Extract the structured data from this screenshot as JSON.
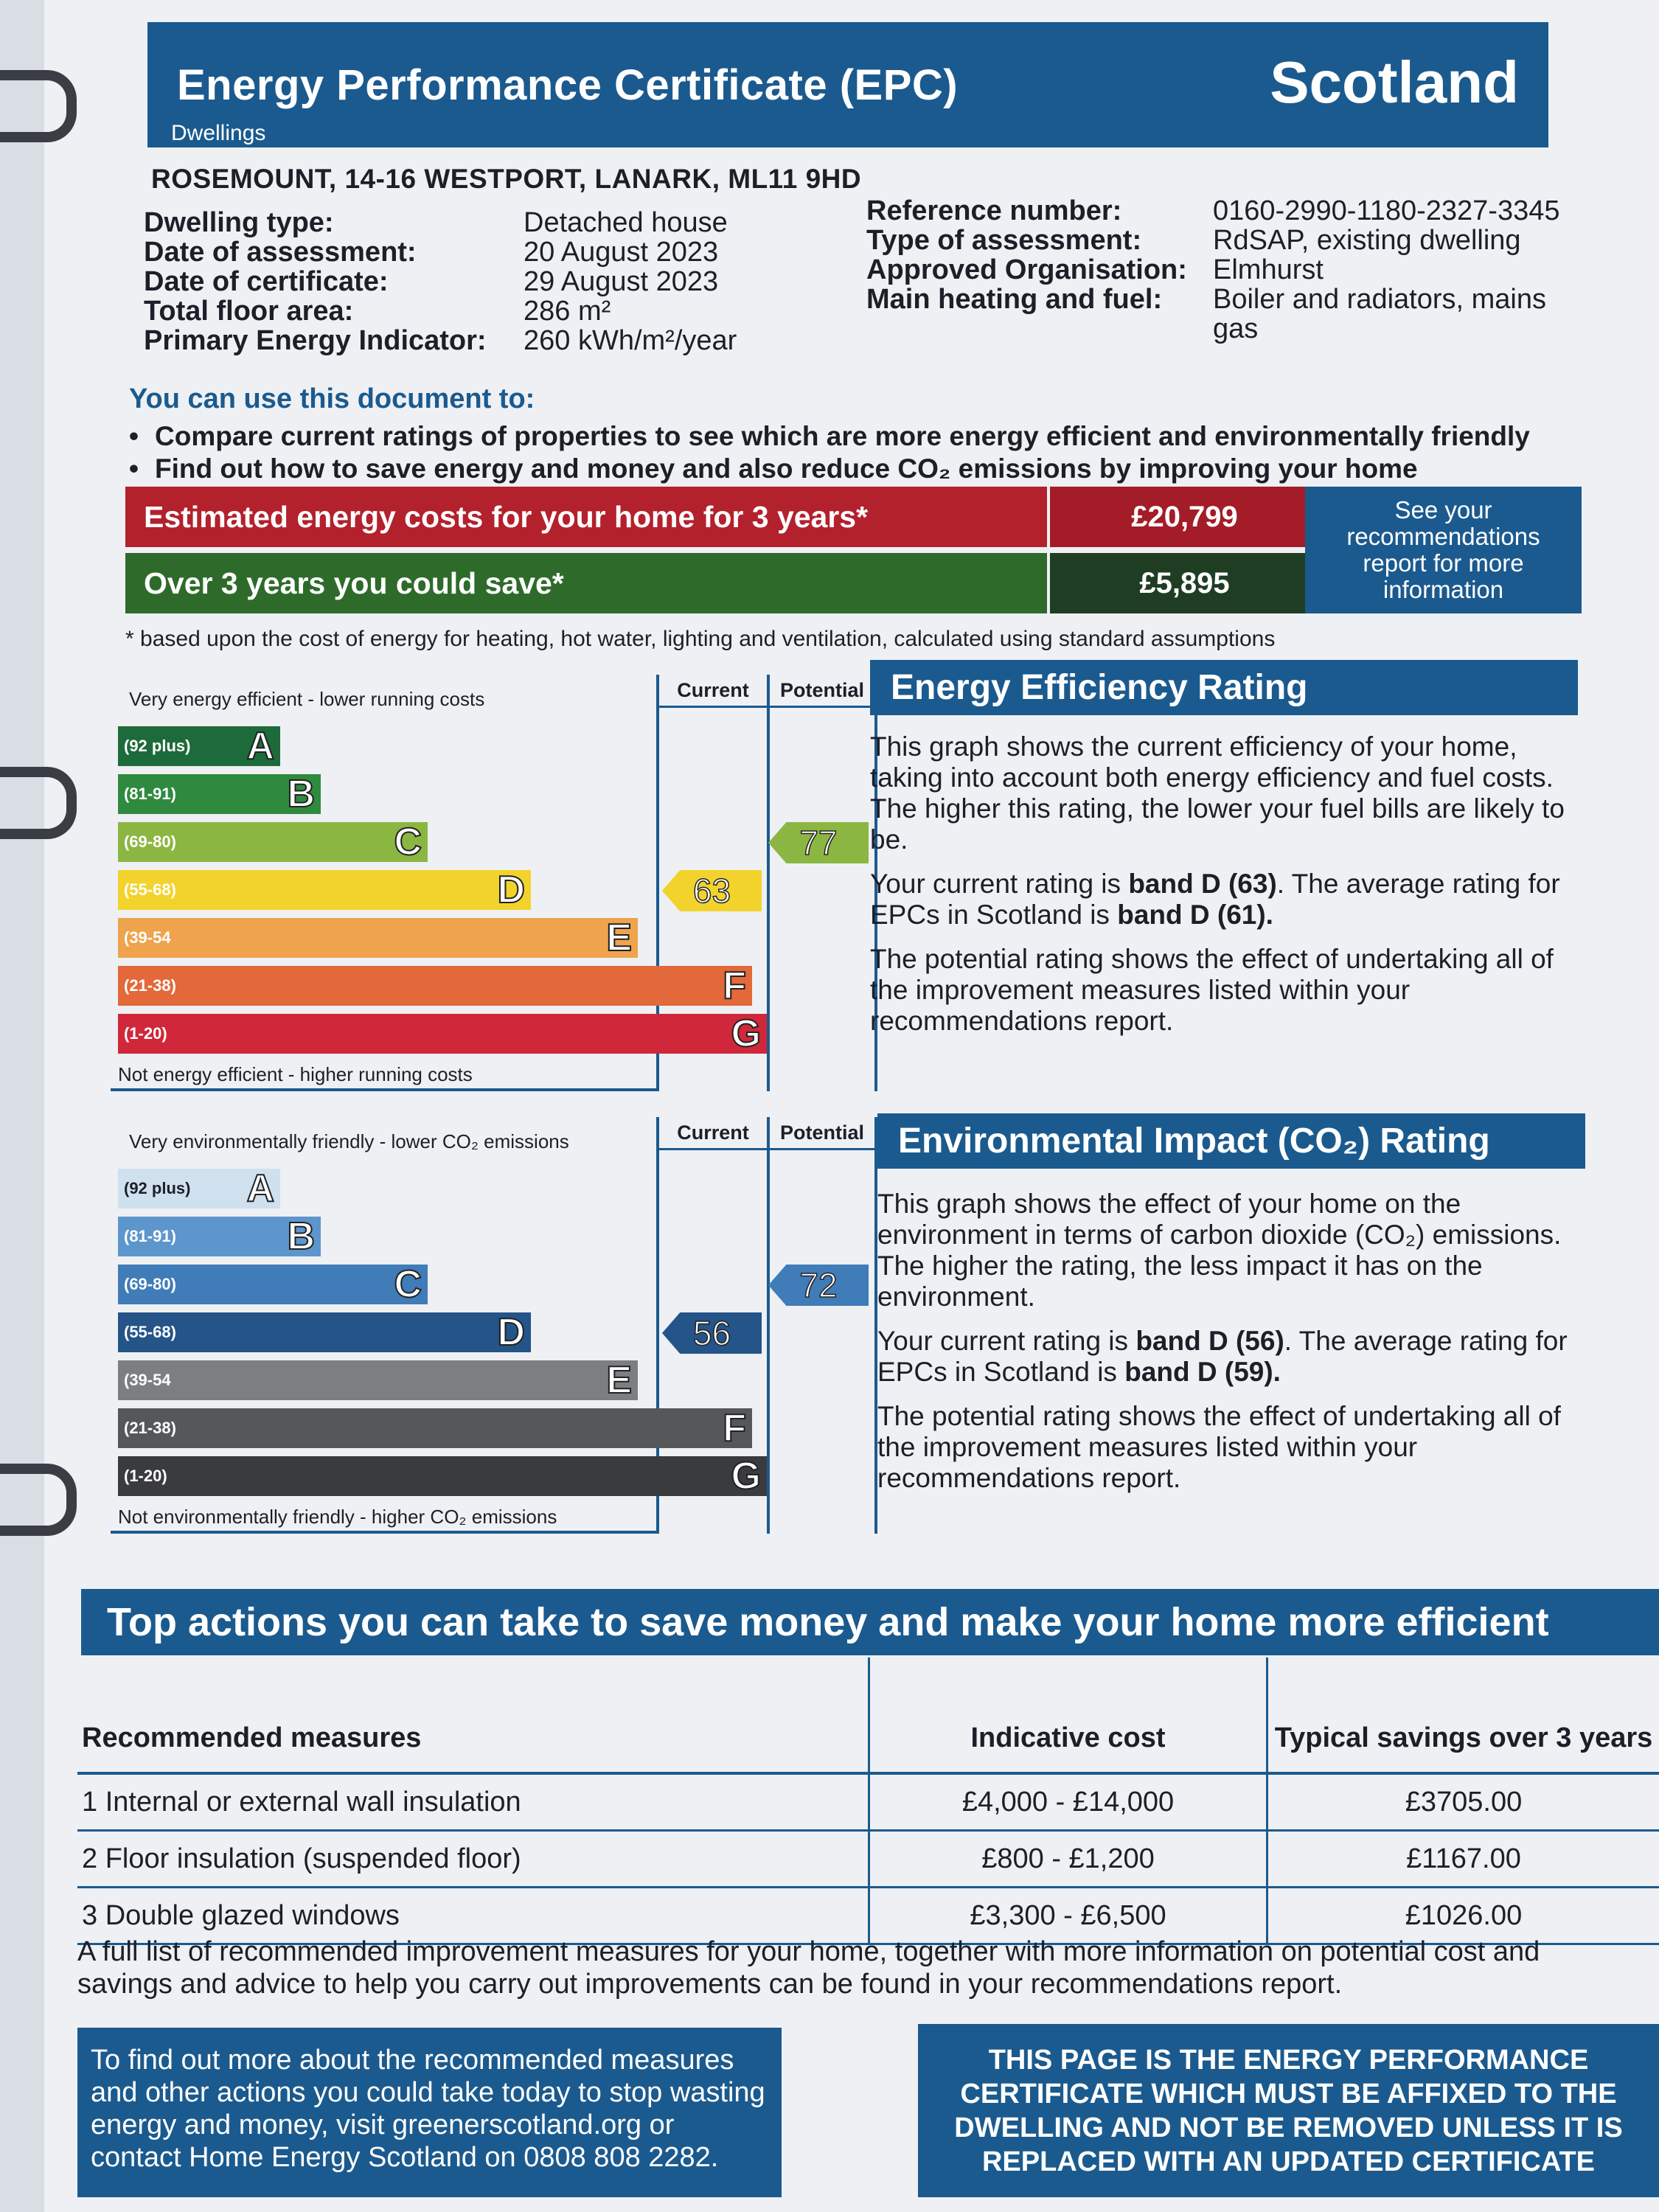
{
  "header": {
    "title": "Energy Performance Certificate (EPC)",
    "country": "Scotland",
    "subtitle": "Dwellings"
  },
  "address": "ROSEMOUNT, 14-16 WESTPORT, LANARK, ML11 9HD",
  "details_left": [
    {
      "label": "Dwelling type:",
      "value": "Detached house"
    },
    {
      "label": "Date of assessment:",
      "value": "20 August 2023"
    },
    {
      "label": "Date of certificate:",
      "value": "29 August 2023"
    },
    {
      "label": "Total floor area:",
      "value": "286 m²"
    },
    {
      "label": "Primary Energy Indicator:",
      "value": "260 kWh/m²/year"
    }
  ],
  "details_right": [
    {
      "label": "Reference number:",
      "value": "0160-2990-1180-2327-3345"
    },
    {
      "label": "Type of assessment:",
      "value": "RdSAP, existing dwelling"
    },
    {
      "label": "Approved Organisation:",
      "value": "Elmhurst"
    },
    {
      "label": "Main heating and fuel:",
      "value": "Boiler and radiators, mains gas"
    }
  ],
  "use": {
    "title": "You can use this document to:",
    "bullets": [
      "Compare current ratings of properties to see which are more energy efficient and environmentally friendly",
      "Find out how to save energy and money and also reduce CO₂ emissions by improving your home"
    ]
  },
  "costs": {
    "estimated_label": "Estimated energy costs for your home for 3 years*",
    "estimated_value": "£20,799",
    "save_label": "Over 3 years you could save*",
    "save_value": "£5,895",
    "see_box": "See your recommendations report for more information",
    "footnote": "* based upon the cost of energy for heating, hot water, lighting and ventilation, calculated using standard assumptions"
  },
  "energy_chart": {
    "top_label": "Very energy efficient - lower running costs",
    "bottom_label": "Not energy efficient - higher running costs",
    "col_current": "Current",
    "col_potential": "Potential",
    "bands": [
      {
        "range": "(92 plus)",
        "letter": "A",
        "color": "#1d6b3a"
      },
      {
        "range": "(81-91)",
        "letter": "B",
        "color": "#2f8a3f"
      },
      {
        "range": "(69-80)",
        "letter": "C",
        "color": "#8cb642"
      },
      {
        "range": "(55-68)",
        "letter": "D",
        "color": "#f2d32c"
      },
      {
        "range": "(39-54",
        "letter": "E",
        "color": "#eea34c"
      },
      {
        "range": "(21-38)",
        "letter": "F",
        "color": "#e3683a"
      },
      {
        "range": "(1-20)",
        "letter": "G",
        "color": "#d0283a"
      }
    ],
    "current": "63",
    "potential": "77",
    "current_color": "#f2d32c",
    "potential_color": "#8cb642"
  },
  "energy_text": {
    "title": "Energy Efficiency Rating",
    "p1": "This graph shows the current efficiency of your home, taking into account both energy efficiency and fuel costs. The higher this rating, the lower your fuel bills are likely to be.",
    "p2_a": "Your current rating is ",
    "p2_b": "band D (63)",
    "p2_c": ". The average rating for EPCs in Scotland is ",
    "p2_d": "band D (61).",
    "p3": "The potential rating shows the effect of undertaking all of the improvement measures listed within your recommendations report."
  },
  "env_chart": {
    "top_label": "Very environmentally friendly - lower CO₂ emissions",
    "bottom_label": "Not environmentally friendly - higher CO₂ emissions",
    "col_current": "Current",
    "col_potential": "Potential",
    "bands": [
      {
        "range": "(92 plus)",
        "letter": "A",
        "color": "#cfe0ee"
      },
      {
        "range": "(81-91)",
        "letter": "B",
        "color": "#5d96cc"
      },
      {
        "range": "(69-80)",
        "letter": "C",
        "color": "#3f7cb8"
      },
      {
        "range": "(55-68)",
        "letter": "D",
        "color": "#245488"
      },
      {
        "range": "(39-54",
        "letter": "E",
        "color": "#7c7e82"
      },
      {
        "range": "(21-38)",
        "letter": "F",
        "color": "#55575b"
      },
      {
        "range": "(1-20)",
        "letter": "G",
        "color": "#3a3b3f"
      }
    ],
    "current": "56",
    "potential": "72",
    "current_color": "#245488",
    "potential_color": "#3f7cb8"
  },
  "env_text": {
    "title": "Environmental Impact (CO₂) Rating",
    "p1": "This graph shows the effect of your home on the environment in terms of carbon dioxide (CO₂) emissions. The higher the rating, the less impact it has on the environment.",
    "p2_a": "Your current rating is ",
    "p2_b": "band D (56)",
    "p2_c": ". The average rating for EPCs in Scotland is ",
    "p2_d": "band D (59).",
    "p3": "The potential rating shows the effect of undertaking all of the improvement measures listed within your recommendations report."
  },
  "actions": {
    "title": "Top actions you can take to save money and make your home more efficient",
    "headers": [
      "Recommended measures",
      "Indicative cost",
      "Typical savings over 3 years"
    ],
    "rows": [
      [
        "1 Internal or external wall insulation",
        "£4,000 - £14,000",
        "£3705.00"
      ],
      [
        "2 Floor insulation (suspended floor)",
        "£800 - £1,200",
        "£1167.00"
      ],
      [
        "3 Double glazed windows",
        "£3,300 - £6,500",
        "£1026.00"
      ]
    ],
    "full_list": "A full list of recommended improvement measures for your home, together with more information on potential cost and savings and advice to help you carry out improvements can be found in your recommendations report."
  },
  "footer": {
    "more": "To find out more about the recommended measures and other actions you could take today to stop wasting energy and money, visit greenerscotland.org or contact Home Energy Scotland on 0808 808 2282.",
    "affix": "THIS PAGE IS THE ENERGY PERFORMANCE CERTIFICATE WHICH MUST BE AFFIXED TO THE DWELLING AND NOT BE REMOVED UNLESS IT IS REPLACED WITH AN UPDATED CERTIFICATE"
  }
}
